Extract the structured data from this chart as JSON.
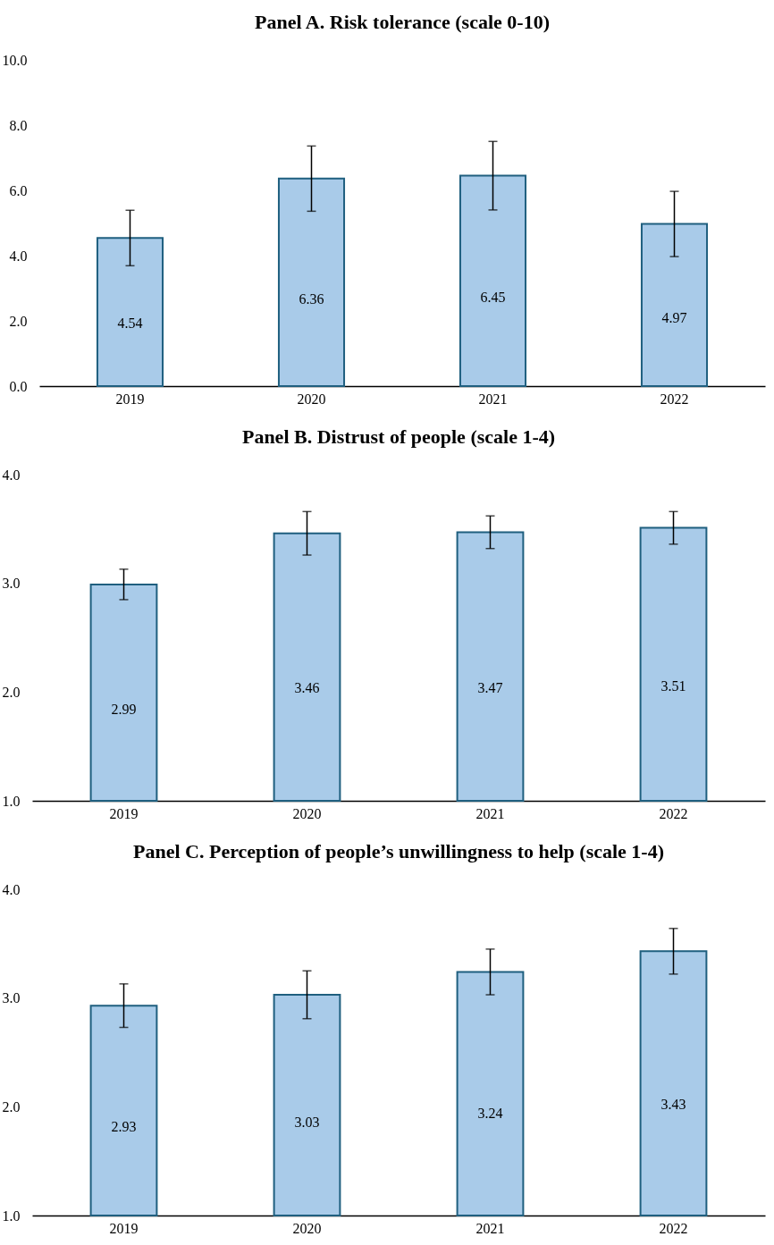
{
  "chart_data": [
    {
      "type": "bar",
      "title": "Panel A. Risk tolerance (scale 0-10)",
      "categories": [
        "2019",
        "2020",
        "2021",
        "2022"
      ],
      "series": [
        {
          "color": "#a9cbe9",
          "values": [
            4.54,
            6.36,
            6.45,
            4.97
          ],
          "errors": [
            0.85,
            1.0,
            1.05,
            1.0
          ]
        }
      ],
      "data_labels": true,
      "ylim": [
        0,
        10
      ],
      "yticks": [
        {
          "value": 0,
          "label": "0.0"
        },
        {
          "value": 2,
          "label": "2.0"
        },
        {
          "value": 4,
          "label": "4.0"
        },
        {
          "value": 6,
          "label": "6.0"
        },
        {
          "value": 8,
          "label": "8.0"
        },
        {
          "value": 10,
          "label": "10.0"
        }
      ],
      "grid": false
    },
    {
      "type": "bar",
      "title": "Panel B. Distrust of people (scale 1-4)",
      "categories": [
        "2019",
        "2020",
        "2021",
        "2022"
      ],
      "series": [
        {
          "color": "#a9cbe9",
          "values": [
            2.99,
            3.46,
            3.47,
            3.51
          ],
          "errors": [
            0.14,
            0.2,
            0.15,
            0.15
          ]
        }
      ],
      "data_labels": true,
      "ylim": [
        1,
        4
      ],
      "yticks": [
        {
          "value": 1,
          "label": "1.0"
        },
        {
          "value": 2,
          "label": "2.0"
        },
        {
          "value": 3,
          "label": "3.0"
        },
        {
          "value": 4,
          "label": "4.0"
        }
      ],
      "grid": false
    },
    {
      "type": "bar",
      "title": "Panel C. Perception of people’s unwillingness to help (scale 1-4)",
      "categories": [
        "2019",
        "2020",
        "2021",
        "2022"
      ],
      "series": [
        {
          "color": "#a9cbe9",
          "values": [
            2.93,
            3.03,
            3.24,
            3.43
          ],
          "errors": [
            0.2,
            0.22,
            0.21,
            0.21
          ]
        }
      ],
      "data_labels": true,
      "ylim": [
        1,
        4
      ],
      "yticks": [
        {
          "value": 1,
          "label": "1.0"
        },
        {
          "value": 2,
          "label": "2.0"
        },
        {
          "value": 3,
          "label": "3.0"
        },
        {
          "value": 4,
          "label": "4.0"
        }
      ],
      "grid": false
    }
  ]
}
